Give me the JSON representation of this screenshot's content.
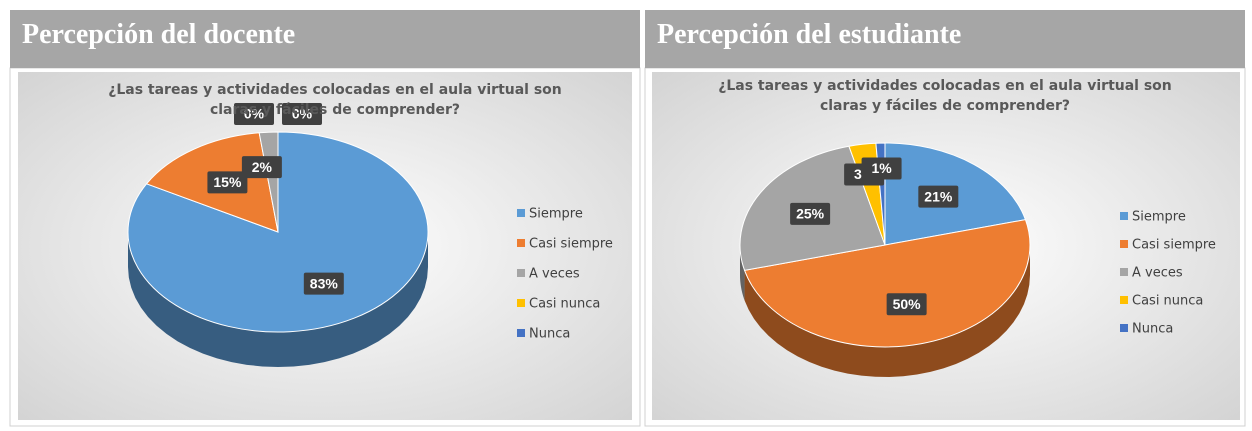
{
  "chart_data": [
    {
      "type": "pie",
      "heading": "Percepción del docente",
      "title": "¿Las tareas y actividades colocadas en el aula virtual son claras y fáciles de comprender?",
      "categories": [
        "Siempre",
        "Casi siempre",
        "A veces",
        "Casi nunca",
        "Nunca"
      ],
      "values": [
        83,
        15,
        2,
        0,
        0
      ],
      "value_labels": [
        "83%",
        "15%",
        "2%",
        "0%",
        "0%"
      ],
      "colors": [
        "#5b9bd5",
        "#ed7d31",
        "#a5a5a5",
        "#ffc000",
        "#4472c4"
      ],
      "legend": "right"
    },
    {
      "type": "pie",
      "heading": "Percepción del estudiante",
      "title": "¿Las tareas y actividades colocadas en el aula virtual son claras y fáciles de comprender?",
      "categories": [
        "Siempre",
        "Casi siempre",
        "A veces",
        "Casi nunca",
        "Nunca"
      ],
      "values": [
        21,
        50,
        25,
        3,
        1
      ],
      "value_labels": [
        "21%",
        "50%",
        "25%",
        "3%",
        "1%"
      ],
      "colors": [
        "#5b9bd5",
        "#ed7d31",
        "#a5a5a5",
        "#ffc000",
        "#4472c4"
      ],
      "legend": "right"
    }
  ]
}
